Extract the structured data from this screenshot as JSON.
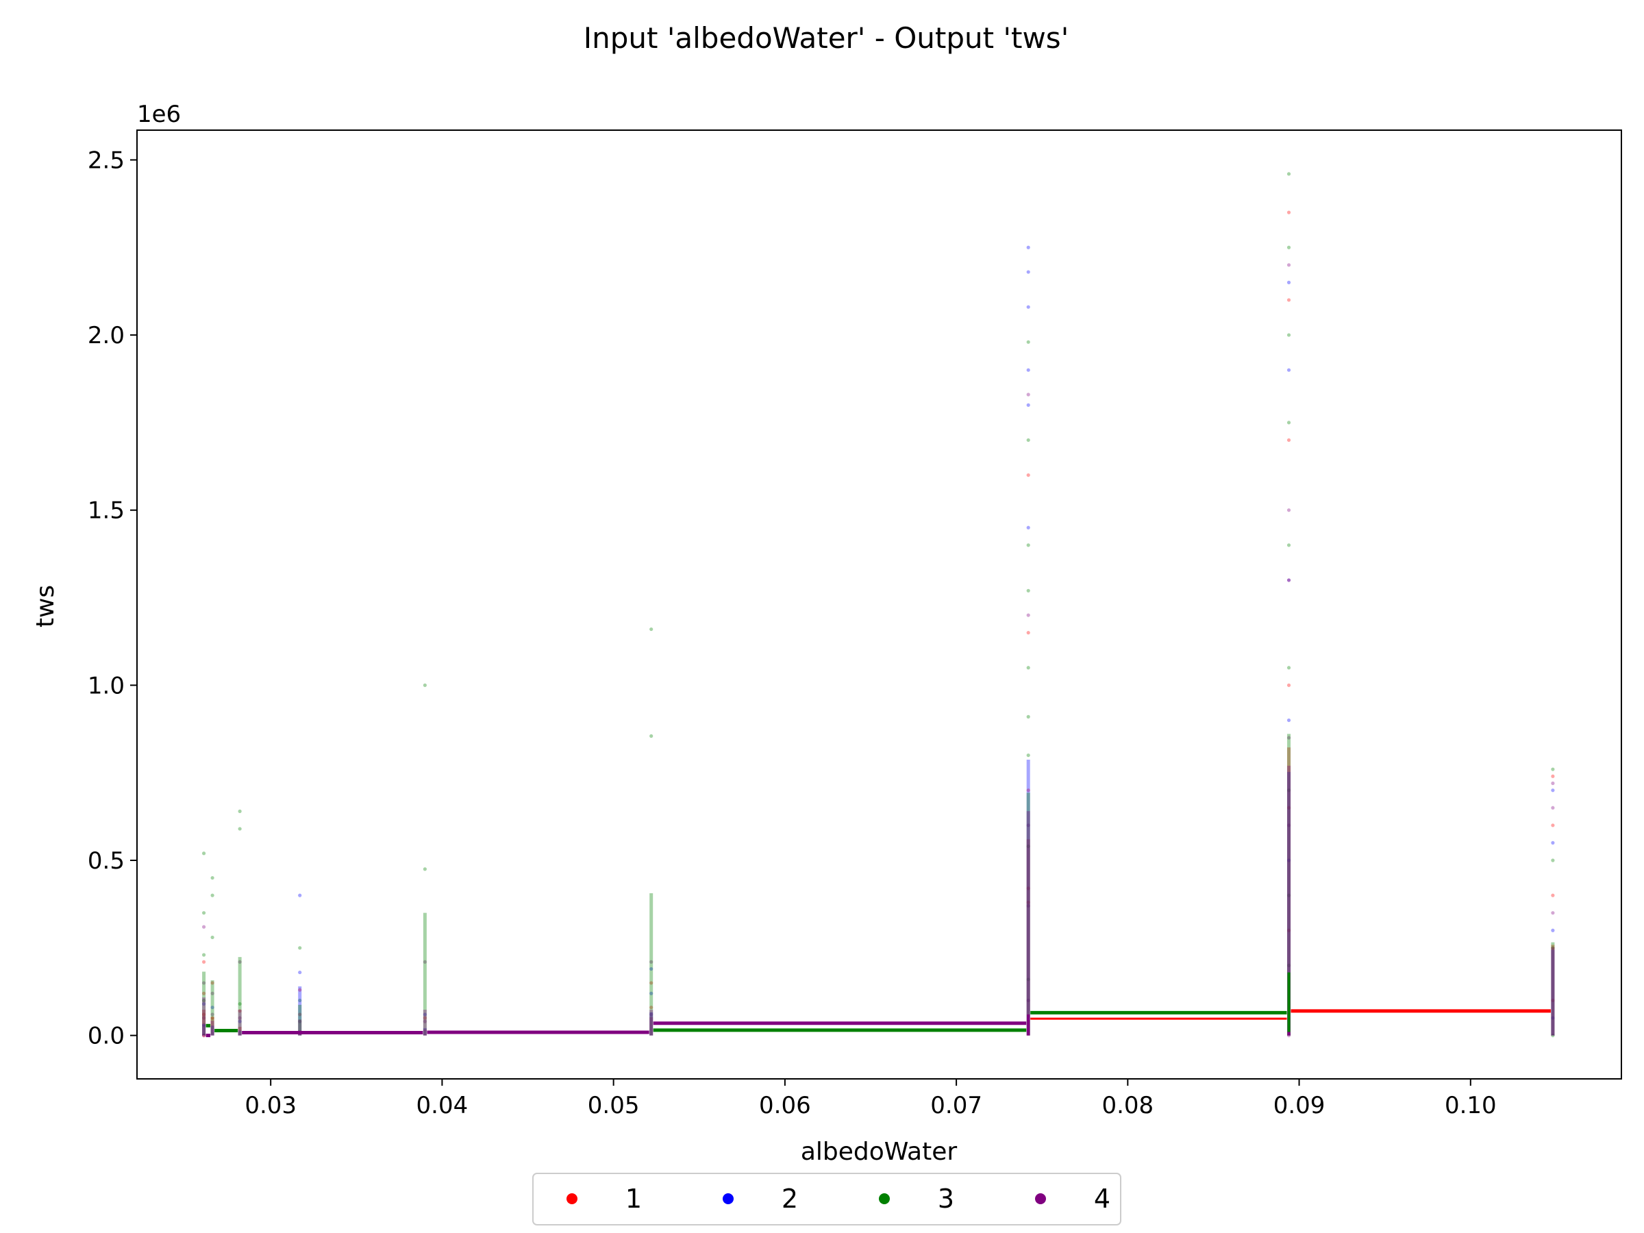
{
  "chart_data": {
    "type": "scatter",
    "title": "Input 'albedoWater' - Output 'tws'",
    "xlabel": "albedoWater",
    "ylabel": "tws",
    "y_offset_text": "1e6",
    "xlim": [
      0.0222,
      0.1088
    ],
    "ylim": [
      -124000,
      2585000
    ],
    "x_ticks": [
      0.03,
      0.04,
      0.05,
      0.06,
      0.07,
      0.08,
      0.09,
      0.1
    ],
    "x_tick_labels": [
      "0.03",
      "0.04",
      "0.05",
      "0.06",
      "0.07",
      "0.08",
      "0.09",
      "0.10"
    ],
    "y_ticks": [
      0,
      500000,
      1000000,
      1500000,
      2000000,
      2500000
    ],
    "y_tick_labels": [
      "0.0",
      "0.5",
      "1.0",
      "1.5",
      "2.0",
      "2.5"
    ],
    "grid": false,
    "legend_position": "bottom-center, below axes, single row",
    "colors": {
      "1": "#ff0000",
      "2": "#0000ff",
      "3": "#008000",
      "4": "#800080"
    },
    "x_groups": [
      0.0261,
      0.0266,
      0.0282,
      0.0317,
      0.039,
      0.0522,
      0.0742,
      0.0894,
      0.1048
    ],
    "series": [
      {
        "name": "1",
        "color": "#ff0000",
        "points": [
          [
            0.0261,
            0.0
          ],
          [
            0.0261,
            60000
          ],
          [
            0.0261,
            120000
          ],
          [
            0.0261,
            210000
          ],
          [
            0.0266,
            50000
          ],
          [
            0.0266,
            150000
          ],
          [
            0.0282,
            70000
          ],
          [
            0.0317,
            60000
          ],
          [
            0.0317,
            130000
          ],
          [
            0.039,
            50000
          ],
          [
            0.0522,
            80000
          ],
          [
            0.0522,
            150000
          ],
          [
            0.0742,
            380000
          ],
          [
            0.0742,
            420000
          ],
          [
            0.0742,
            700000
          ],
          [
            0.0742,
            1150000
          ],
          [
            0.0742,
            1600000
          ],
          [
            0.0894,
            300000
          ],
          [
            0.0894,
            650000
          ],
          [
            0.0894,
            1000000
          ],
          [
            0.0894,
            1300000
          ],
          [
            0.0894,
            1700000
          ],
          [
            0.0894,
            2100000
          ],
          [
            0.0894,
            2350000
          ],
          [
            0.1048,
            100000
          ],
          [
            0.1048,
            400000
          ],
          [
            0.1048,
            600000
          ],
          [
            0.1048,
            740000
          ]
        ],
        "step_line": [
          [
            0.0742,
            0.0894,
            48000
          ],
          [
            0.0894,
            0.1048,
            70000
          ]
        ]
      },
      {
        "name": "2",
        "color": "#0000ff",
        "points": [
          [
            0.0261,
            30000
          ],
          [
            0.0261,
            90000
          ],
          [
            0.0266,
            80000
          ],
          [
            0.0282,
            40000
          ],
          [
            0.0317,
            400000
          ],
          [
            0.0317,
            180000
          ],
          [
            0.039,
            60000
          ],
          [
            0.0522,
            190000
          ],
          [
            0.0522,
            120000
          ],
          [
            0.0742,
            1900000
          ],
          [
            0.0742,
            2080000
          ],
          [
            0.0742,
            2180000
          ],
          [
            0.0742,
            2250000
          ],
          [
            0.0742,
            1450000
          ],
          [
            0.0742,
            1800000
          ],
          [
            0.0894,
            500000
          ],
          [
            0.0894,
            900000
          ],
          [
            0.0894,
            1300000
          ],
          [
            0.0894,
            1900000
          ],
          [
            0.0894,
            2150000
          ],
          [
            0.1048,
            50000
          ],
          [
            0.1048,
            300000
          ],
          [
            0.1048,
            550000
          ],
          [
            0.1048,
            700000
          ]
        ],
        "step_line": []
      },
      {
        "name": "3",
        "color": "#008000",
        "points": [
          [
            0.0261,
            520000
          ],
          [
            0.0261,
            350000
          ],
          [
            0.0261,
            230000
          ],
          [
            0.0261,
            100000
          ],
          [
            0.0266,
            450000
          ],
          [
            0.0266,
            400000
          ],
          [
            0.0266,
            280000
          ],
          [
            0.0282,
            640000
          ],
          [
            0.0282,
            590000
          ],
          [
            0.0282,
            90000
          ],
          [
            0.0317,
            250000
          ],
          [
            0.0317,
            100000
          ],
          [
            0.039,
            1000000
          ],
          [
            0.039,
            475000
          ],
          [
            0.0522,
            1160000
          ],
          [
            0.0522,
            855000
          ],
          [
            0.0742,
            1980000
          ],
          [
            0.0742,
            1700000
          ],
          [
            0.0742,
            1400000
          ],
          [
            0.0742,
            1270000
          ],
          [
            0.0742,
            1050000
          ],
          [
            0.0742,
            910000
          ],
          [
            0.0742,
            800000
          ],
          [
            0.0742,
            540000
          ],
          [
            0.0742,
            160000
          ],
          [
            0.0894,
            2460000
          ],
          [
            0.0894,
            2250000
          ],
          [
            0.0894,
            2000000
          ],
          [
            0.0894,
            1750000
          ],
          [
            0.0894,
            1400000
          ],
          [
            0.0894,
            1050000
          ],
          [
            0.0894,
            700000
          ],
          [
            0.0894,
            400000
          ],
          [
            0.0894,
            200000
          ],
          [
            0.1048,
            0
          ],
          [
            0.1048,
            250000
          ],
          [
            0.1048,
            500000
          ],
          [
            0.1048,
            760000
          ]
        ],
        "step_line": [
          [
            0.0261,
            0.0266,
            28000
          ],
          [
            0.0266,
            0.0282,
            14000
          ],
          [
            0.0522,
            0.0742,
            15000
          ],
          [
            0.0742,
            0.0894,
            65000
          ],
          [
            0.0894,
            0.0894,
            180000
          ]
        ]
      },
      {
        "name": "4",
        "color": "#800080",
        "points": [
          [
            0.0261,
            0
          ],
          [
            0.0261,
            50000
          ],
          [
            0.0261,
            150000
          ],
          [
            0.0261,
            310000
          ],
          [
            0.0266,
            60000
          ],
          [
            0.0266,
            120000
          ],
          [
            0.0282,
            210000
          ],
          [
            0.0282,
            50000
          ],
          [
            0.0317,
            40000
          ],
          [
            0.039,
            210000
          ],
          [
            0.039,
            40000
          ],
          [
            0.0522,
            210000
          ],
          [
            0.0522,
            60000
          ],
          [
            0.0742,
            370000
          ],
          [
            0.0742,
            600000
          ],
          [
            0.0742,
            1200000
          ],
          [
            0.0742,
            1830000
          ],
          [
            0.0742,
            100000
          ],
          [
            0.0894,
            0
          ],
          [
            0.0894,
            600000
          ],
          [
            0.0894,
            850000
          ],
          [
            0.0894,
            1500000
          ],
          [
            0.0894,
            2200000
          ],
          [
            0.1048,
            350000
          ],
          [
            0.1048,
            650000
          ],
          [
            0.1048,
            720000
          ]
        ],
        "step_line": [
          [
            0.0261,
            0.0266,
            0
          ],
          [
            0.0282,
            0.039,
            8000
          ],
          [
            0.039,
            0.0522,
            9000
          ],
          [
            0.0522,
            0.0742,
            35000
          ],
          [
            0.0742,
            0.0742,
            60000
          ],
          [
            0.0894,
            0.0894,
            10000
          ]
        ]
      }
    ],
    "legend": [
      {
        "label": "1",
        "color": "#ff0000"
      },
      {
        "label": "2",
        "color": "#0000ff"
      },
      {
        "label": "3",
        "color": "#008000"
      },
      {
        "label": "4",
        "color": "#800080"
      }
    ]
  }
}
